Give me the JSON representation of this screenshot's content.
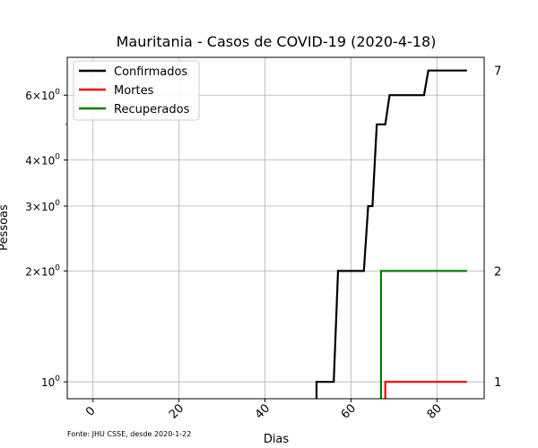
{
  "chart_data": {
    "type": "line",
    "title": "Mauritania - Casos de COVID-19 (2020-4-18)",
    "xlabel": "Dias",
    "ylabel": "Pessoas",
    "y_scale": "log",
    "xlim": [
      -6,
      91
    ],
    "ylim": [
      0.9,
      7.6
    ],
    "x_ticks": [
      0,
      20,
      40,
      60,
      80
    ],
    "x_tick_labels": [
      "0",
      "20",
      "40",
      "60",
      "80"
    ],
    "y_ticks": [
      1,
      2,
      3,
      4,
      6
    ],
    "y_tick_labels": [
      {
        "base": "10",
        "exp": "0"
      },
      {
        "base": "2×10",
        "exp": "0"
      },
      {
        "base": "3×10",
        "exp": "0"
      },
      {
        "base": "4×10",
        "exp": "0"
      },
      {
        "base": "6×10",
        "exp": "0"
      }
    ],
    "y_minor_ticks": [
      5
    ],
    "grid": true,
    "legend_position": "top-left",
    "series": [
      {
        "name": "Confirmados",
        "color": "#000000",
        "points": [
          [
            52,
            0.9
          ],
          [
            52,
            1
          ],
          [
            56,
            1
          ],
          [
            57,
            2
          ],
          [
            63,
            2
          ],
          [
            64,
            3
          ],
          [
            65,
            3
          ],
          [
            66,
            5
          ],
          [
            68,
            5
          ],
          [
            69,
            6
          ],
          [
            77,
            6
          ],
          [
            78,
            7
          ],
          [
            87,
            7
          ]
        ]
      },
      {
        "name": "Mortes",
        "color": "#ff0000",
        "points": [
          [
            68,
            0.9
          ],
          [
            68,
            1
          ],
          [
            87,
            1
          ]
        ]
      },
      {
        "name": "Recuperados",
        "color": "#008000",
        "points": [
          [
            67,
            0.9
          ],
          [
            67,
            2
          ],
          [
            87,
            2
          ]
        ]
      }
    ],
    "end_labels": [
      {
        "value": 7,
        "text": "7"
      },
      {
        "value": 2,
        "text": "2"
      },
      {
        "value": 1,
        "text": "1"
      }
    ],
    "source_note": "Fonte: JHU CSSE, desde 2020-1-22"
  }
}
